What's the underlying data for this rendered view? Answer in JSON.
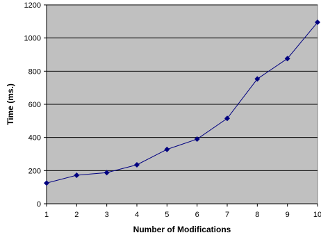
{
  "chart_data": {
    "type": "line",
    "title": "",
    "xlabel": "Number of Modifications",
    "ylabel": "Time (ms.)",
    "x": [
      1,
      2,
      3,
      4,
      5,
      6,
      7,
      8,
      9,
      10
    ],
    "xlim": [
      1,
      10
    ],
    "ylim": [
      0,
      1200
    ],
    "y_ticks": [
      0,
      200,
      400,
      600,
      800,
      1000,
      1200
    ],
    "x_ticks": [
      1,
      2,
      3,
      4,
      5,
      6,
      7,
      8,
      9,
      10
    ],
    "series": [
      {
        "values": [
          125,
          172,
          188,
          235,
          328,
          390,
          515,
          753,
          876,
          1095
        ],
        "color": "#000080",
        "marker": "diamond"
      }
    ],
    "grid": "horizontal",
    "plot_background": "#c0c0c0",
    "legend": "none"
  }
}
